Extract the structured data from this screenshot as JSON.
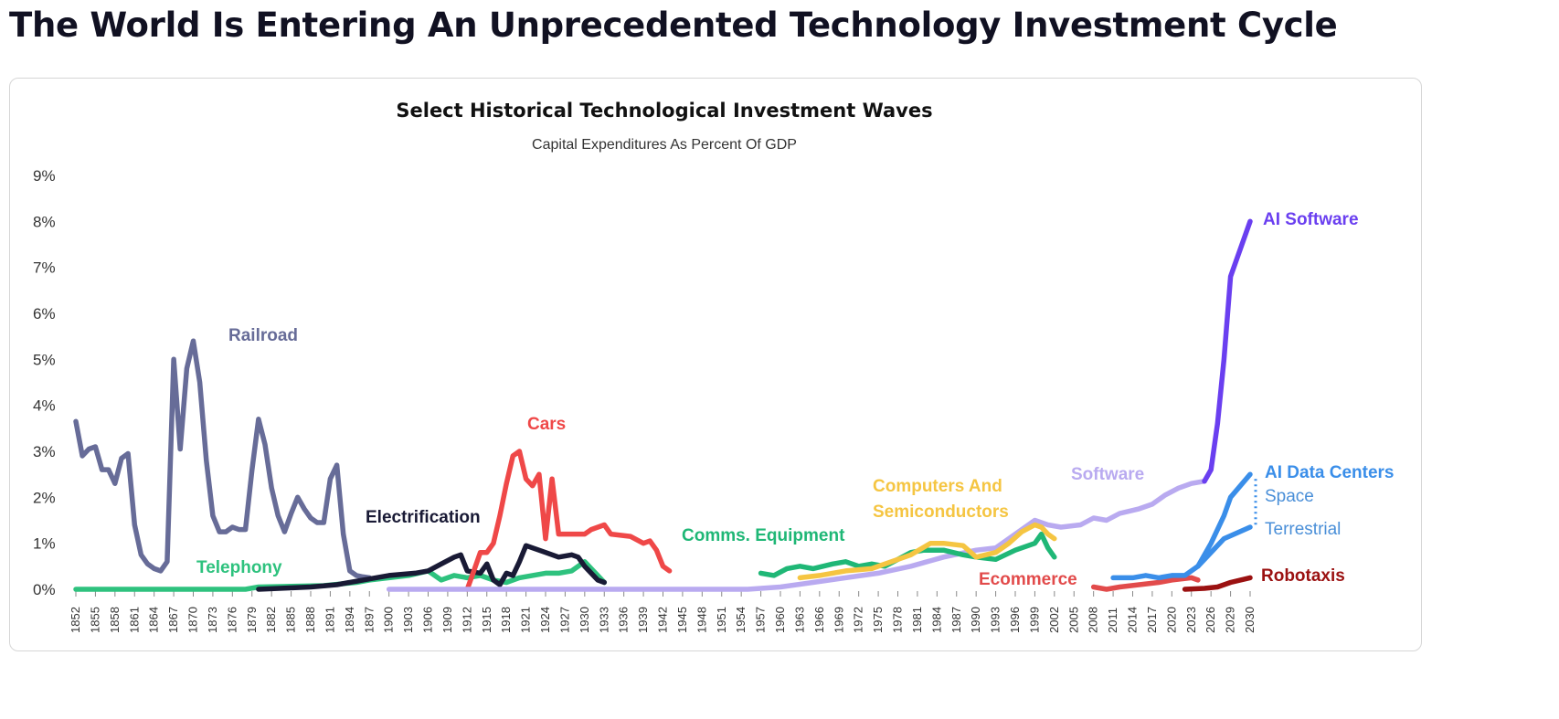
{
  "header": {
    "title": "The World Is Entering An Unprecedented Technology Investment Cycle"
  },
  "chart_data": {
    "type": "line",
    "title": "Select Historical Technological Investment Waves",
    "subtitle": "Capital Expenditures As Percent Of GDP",
    "xlabel": "",
    "ylabel": "",
    "ylim": [
      0,
      9
    ],
    "xlim": [
      1852,
      2030
    ],
    "y_ticks": [
      "0%",
      "1%",
      "2%",
      "3%",
      "4%",
      "5%",
      "6%",
      "7%",
      "8%",
      "9%"
    ],
    "x_ticks": [
      "1852",
      "1855",
      "1858",
      "1861",
      "1864",
      "1867",
      "1870",
      "1873",
      "1876",
      "1879",
      "1882",
      "1885",
      "1888",
      "1891",
      "1894",
      "1897",
      "1900",
      "1903",
      "1906",
      "1909",
      "1912",
      "1915",
      "1918",
      "1921",
      "1924",
      "1927",
      "1930",
      "1933",
      "1936",
      "1939",
      "1942",
      "1945",
      "1948",
      "1951",
      "1954",
      "1957",
      "1960",
      "1963",
      "1966",
      "1969",
      "1972",
      "1975",
      "1978",
      "1981",
      "1984",
      "1987",
      "1990",
      "1993",
      "1996",
      "1999",
      "2002",
      "2005",
      "2008",
      "2011",
      "2014",
      "2017",
      "2020",
      "2023",
      "2026",
      "2029",
      "2030"
    ],
    "grid": false,
    "series": [
      {
        "name": "Railroad",
        "color": "#676c98",
        "points": [
          [
            1852,
            3.65
          ],
          [
            1853,
            2.9
          ],
          [
            1854,
            3.05
          ],
          [
            1855,
            3.1
          ],
          [
            1856,
            2.6
          ],
          [
            1857,
            2.6
          ],
          [
            1858,
            2.3
          ],
          [
            1859,
            2.85
          ],
          [
            1860,
            2.95
          ],
          [
            1861,
            1.4
          ],
          [
            1862,
            0.75
          ],
          [
            1863,
            0.55
          ],
          [
            1864,
            0.45
          ],
          [
            1865,
            0.4
          ],
          [
            1866,
            0.6
          ],
          [
            1867,
            5.0
          ],
          [
            1868,
            3.05
          ],
          [
            1869,
            4.8
          ],
          [
            1870,
            5.4
          ],
          [
            1871,
            4.5
          ],
          [
            1872,
            2.8
          ],
          [
            1873,
            1.6
          ],
          [
            1874,
            1.25
          ],
          [
            1875,
            1.25
          ],
          [
            1876,
            1.35
          ],
          [
            1877,
            1.3
          ],
          [
            1878,
            1.3
          ],
          [
            1879,
            2.6
          ],
          [
            1880,
            3.7
          ],
          [
            1881,
            3.15
          ],
          [
            1882,
            2.2
          ],
          [
            1883,
            1.6
          ],
          [
            1884,
            1.25
          ],
          [
            1885,
            1.65
          ],
          [
            1886,
            2.0
          ],
          [
            1887,
            1.75
          ],
          [
            1888,
            1.55
          ],
          [
            1889,
            1.45
          ],
          [
            1890,
            1.45
          ],
          [
            1891,
            2.4
          ],
          [
            1892,
            2.7
          ],
          [
            1893,
            1.2
          ],
          [
            1894,
            0.4
          ],
          [
            1895,
            0.3
          ],
          [
            1896,
            0.27
          ],
          [
            1897,
            0.25
          ]
        ]
      },
      {
        "name": "Telephony",
        "color": "#2ec27e",
        "points": [
          [
            1852,
            0
          ],
          [
            1878,
            0
          ],
          [
            1880,
            0.05
          ],
          [
            1890,
            0.08
          ],
          [
            1895,
            0.15
          ],
          [
            1897,
            0.2
          ],
          [
            1900,
            0.25
          ],
          [
            1903,
            0.3
          ],
          [
            1906,
            0.4
          ],
          [
            1908,
            0.2
          ],
          [
            1910,
            0.3
          ],
          [
            1912,
            0.25
          ],
          [
            1914,
            0.3
          ],
          [
            1916,
            0.2
          ],
          [
            1918,
            0.15
          ],
          [
            1920,
            0.25
          ],
          [
            1922,
            0.3
          ],
          [
            1924,
            0.35
          ],
          [
            1926,
            0.35
          ],
          [
            1928,
            0.4
          ],
          [
            1930,
            0.6
          ],
          [
            1931,
            0.45
          ],
          [
            1933,
            0.15
          ]
        ]
      },
      {
        "name": "Electrification",
        "color": "#191a35",
        "points": [
          [
            1880,
            0
          ],
          [
            1888,
            0.05
          ],
          [
            1892,
            0.1
          ],
          [
            1896,
            0.2
          ],
          [
            1900,
            0.3
          ],
          [
            1904,
            0.35
          ],
          [
            1906,
            0.4
          ],
          [
            1908,
            0.55
          ],
          [
            1910,
            0.7
          ],
          [
            1911,
            0.75
          ],
          [
            1912,
            0.4
          ],
          [
            1914,
            0.35
          ],
          [
            1915,
            0.55
          ],
          [
            1916,
            0.2
          ],
          [
            1917,
            0.1
          ],
          [
            1918,
            0.35
          ],
          [
            1919,
            0.3
          ],
          [
            1920,
            0.6
          ],
          [
            1921,
            0.95
          ],
          [
            1922,
            0.9
          ],
          [
            1924,
            0.8
          ],
          [
            1926,
            0.7
          ],
          [
            1928,
            0.75
          ],
          [
            1929,
            0.7
          ],
          [
            1930,
            0.5
          ],
          [
            1932,
            0.2
          ],
          [
            1933,
            0.15
          ]
        ]
      },
      {
        "name": "Cars",
        "color": "#ef4848",
        "points": [
          [
            1912,
            0
          ],
          [
            1913,
            0.4
          ],
          [
            1914,
            0.8
          ],
          [
            1915,
            0.8
          ],
          [
            1916,
            1.0
          ],
          [
            1917,
            1.6
          ],
          [
            1918,
            2.3
          ],
          [
            1919,
            2.9
          ],
          [
            1920,
            3.0
          ],
          [
            1921,
            2.4
          ],
          [
            1922,
            2.25
          ],
          [
            1923,
            2.5
          ],
          [
            1924,
            1.1
          ],
          [
            1925,
            2.4
          ],
          [
            1926,
            1.2
          ],
          [
            1927,
            1.2
          ],
          [
            1929,
            1.2
          ],
          [
            1930,
            1.2
          ],
          [
            1931,
            1.3
          ],
          [
            1933,
            1.4
          ],
          [
            1934,
            1.2
          ],
          [
            1937,
            1.15
          ],
          [
            1939,
            1.0
          ],
          [
            1940,
            1.05
          ],
          [
            1941,
            0.85
          ],
          [
            1942,
            0.5
          ],
          [
            1943,
            0.4
          ]
        ]
      },
      {
        "name": "Software",
        "color": "#b9aaf0",
        "points": [
          [
            1900,
            0
          ],
          [
            1955,
            0
          ],
          [
            1960,
            0.05
          ],
          [
            1965,
            0.15
          ],
          [
            1970,
            0.25
          ],
          [
            1975,
            0.35
          ],
          [
            1980,
            0.5
          ],
          [
            1985,
            0.7
          ],
          [
            1990,
            0.85
          ],
          [
            1993,
            0.9
          ],
          [
            1996,
            1.2
          ],
          [
            1999,
            1.5
          ],
          [
            2001,
            1.4
          ],
          [
            2003,
            1.35
          ],
          [
            2006,
            1.4
          ],
          [
            2008,
            1.55
          ],
          [
            2010,
            1.5
          ],
          [
            2012,
            1.65
          ],
          [
            2015,
            1.75
          ],
          [
            2017,
            1.85
          ],
          [
            2019,
            2.05
          ],
          [
            2021,
            2.2
          ],
          [
            2023,
            2.3
          ],
          [
            2025,
            2.35
          ]
        ]
      },
      {
        "name": "Comms. Equipment",
        "color": "#1fb776",
        "points": [
          [
            1957,
            0.35
          ],
          [
            1959,
            0.3
          ],
          [
            1961,
            0.45
          ],
          [
            1963,
            0.5
          ],
          [
            1965,
            0.45
          ],
          [
            1968,
            0.55
          ],
          [
            1970,
            0.6
          ],
          [
            1972,
            0.5
          ],
          [
            1974,
            0.55
          ],
          [
            1976,
            0.5
          ],
          [
            1978,
            0.65
          ],
          [
            1980,
            0.8
          ],
          [
            1982,
            0.85
          ],
          [
            1985,
            0.85
          ],
          [
            1988,
            0.75
          ],
          [
            1990,
            0.7
          ],
          [
            1993,
            0.65
          ],
          [
            1996,
            0.85
          ],
          [
            1999,
            1.0
          ],
          [
            2000,
            1.2
          ],
          [
            2001,
            0.9
          ],
          [
            2002,
            0.7
          ]
        ]
      },
      {
        "name": "Computers And Semiconductors",
        "color": "#f5c542",
        "points": [
          [
            1963,
            0.25
          ],
          [
            1966,
            0.3
          ],
          [
            1970,
            0.4
          ],
          [
            1974,
            0.45
          ],
          [
            1977,
            0.6
          ],
          [
            1980,
            0.75
          ],
          [
            1983,
            1.0
          ],
          [
            1985,
            1.0
          ],
          [
            1988,
            0.95
          ],
          [
            1990,
            0.7
          ],
          [
            1993,
            0.8
          ],
          [
            1995,
            1.0
          ],
          [
            1997,
            1.25
          ],
          [
            1999,
            1.4
          ],
          [
            2000,
            1.35
          ],
          [
            2001,
            1.2
          ],
          [
            2002,
            1.1
          ]
        ]
      },
      {
        "name": "AI Software",
        "color": "#6a3ff0",
        "points": [
          [
            2025,
            2.35
          ],
          [
            2026,
            2.6
          ],
          [
            2027,
            3.6
          ],
          [
            2028,
            5.0
          ],
          [
            2029,
            6.8
          ],
          [
            2030,
            8.0
          ]
        ]
      },
      {
        "name": "Ecommerce",
        "color": "#e24b4b",
        "points": [
          [
            2008,
            0.05
          ],
          [
            2010,
            0.0
          ],
          [
            2012,
            0.05
          ],
          [
            2015,
            0.1
          ],
          [
            2018,
            0.15
          ],
          [
            2020,
            0.2
          ],
          [
            2023,
            0.25
          ],
          [
            2024,
            0.2
          ]
        ]
      },
      {
        "name": "AI Data Centers - Terrestrial",
        "color": "#3a8ee9",
        "points": [
          [
            2011,
            0.25
          ],
          [
            2014,
            0.25
          ],
          [
            2016,
            0.3
          ],
          [
            2018,
            0.25
          ],
          [
            2020,
            0.3
          ],
          [
            2022,
            0.3
          ],
          [
            2024,
            0.5
          ],
          [
            2026,
            0.8
          ],
          [
            2028,
            1.1
          ],
          [
            2030,
            1.35
          ]
        ]
      },
      {
        "name": "AI Data Centers - Space",
        "color": "#3a8ee9",
        "points": [
          [
            2024,
            0.5
          ],
          [
            2026,
            1.0
          ],
          [
            2028,
            1.6
          ],
          [
            2029,
            2.0
          ],
          [
            2030,
            2.5
          ]
        ]
      },
      {
        "name": "Robotaxis",
        "color": "#9b1111",
        "points": [
          [
            2022,
            0.0
          ],
          [
            2025,
            0.02
          ],
          [
            2027,
            0.05
          ],
          [
            2029,
            0.15
          ],
          [
            2030,
            0.25
          ]
        ]
      }
    ],
    "annotations": [
      {
        "text": "Railroad",
        "color": "#676c98"
      },
      {
        "text": "Telephony",
        "color": "#2ec27e"
      },
      {
        "text": "Electrification",
        "color": "#191a35"
      },
      {
        "text": "Cars",
        "color": "#ef4848"
      },
      {
        "text": "Comms. Equipment",
        "color": "#1fb776"
      },
      {
        "text": "Computers And",
        "color": "#f5c542"
      },
      {
        "text": "Semiconductors",
        "color": "#f5c542"
      },
      {
        "text": "Software",
        "color": "#b9aaf0"
      },
      {
        "text": "Ecommerce",
        "color": "#e24b4b"
      },
      {
        "text": "AI Software",
        "color": "#6a3ff0"
      },
      {
        "text": "AI Data Centers",
        "color": "#3a8ee9"
      },
      {
        "text": "Space",
        "color": "#4a8fd8"
      },
      {
        "text": "Terrestrial",
        "color": "#4a8fd8"
      },
      {
        "text": "Robotaxis",
        "color": "#9b1111"
      }
    ]
  }
}
